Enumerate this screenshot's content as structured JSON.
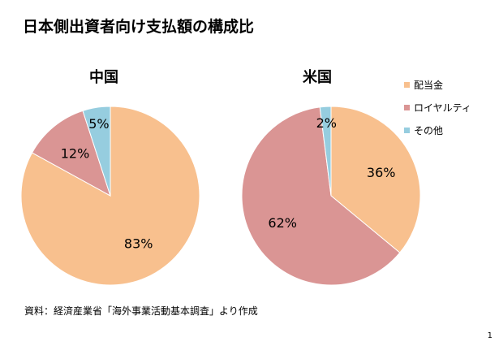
{
  "page": {
    "title": "日本側出資者向け支払額の構成比",
    "source": "資料：経済産業省「海外事業活動基本調査」より作成",
    "page_number": "1"
  },
  "legend": [
    {
      "label": "配当金",
      "color": "#F8C08E"
    },
    {
      "label": "ロイヤルティ",
      "color": "#DA9594"
    },
    {
      "label": "その他",
      "color": "#96CDDF"
    }
  ],
  "chart_data": [
    {
      "type": "pie",
      "title": "中国",
      "categories": [
        "配当金",
        "ロイヤルティ",
        "その他"
      ],
      "values": [
        83,
        12,
        5
      ],
      "labels": [
        "83%",
        "12%",
        "5%"
      ],
      "colors": [
        "#F8C08E",
        "#DA9594",
        "#96CDDF"
      ]
    },
    {
      "type": "pie",
      "title": "米国",
      "categories": [
        "配当金",
        "ロイヤルティ",
        "その他"
      ],
      "values": [
        36,
        62,
        2
      ],
      "labels": [
        "36%",
        "62%",
        "2%"
      ],
      "colors": [
        "#F8C08E",
        "#DA9594",
        "#96CDDF"
      ]
    }
  ]
}
